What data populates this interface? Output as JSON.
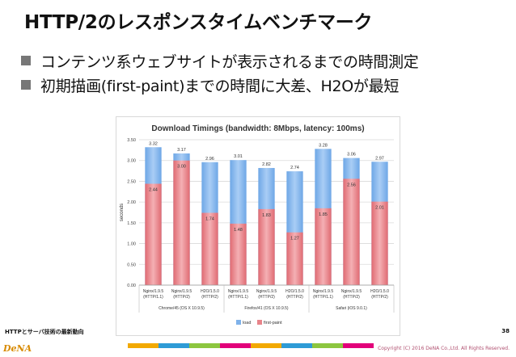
{
  "slide": {
    "title": "HTTP/2のレスポンスタイムベンチマーク",
    "bullets": [
      "コンテンツ系ウェブサイトが表示されるまでの時間測定",
      "初期描画(first-paint)までの時間に大差、H2Oが最短"
    ],
    "footer_note": "HTTPとサーバ技術の最新動向",
    "page_number": "38",
    "logo_text": "DeNA",
    "copyright": "Copyright (C) 2016 DeNA Co.,Ltd. All Rights Reserved.",
    "strip_colors": [
      "#f2a900",
      "#2e9bd6",
      "#8cc63f",
      "#e2007a",
      "#f2a900",
      "#2e9bd6",
      "#8cc63f",
      "#e2007a"
    ]
  },
  "chart_data": {
    "type": "bar",
    "title": "Download Timings (bandwidth: 8Mbps, latency: 100ms)",
    "ylabel": "seconds",
    "ylim": [
      0,
      3.5
    ],
    "yticks": [
      "0.00",
      "0.50",
      "1.00",
      "1.50",
      "2.00",
      "2.50",
      "3.00",
      "3.50"
    ],
    "ytick_values": [
      0,
      0.5,
      1,
      1.5,
      2,
      2.5,
      3,
      3.5
    ],
    "grid": true,
    "legend_position": "bottom",
    "categories": [
      [
        "Nginx/1.9.5",
        "(HTTP/1.1)"
      ],
      [
        "Nginx/1.9.5",
        "(HTTP/2)"
      ],
      [
        "H2O/1.5.0",
        "(HTTP/2)"
      ],
      [
        "Nginx/1.9.5",
        "(HTTP/1.1)"
      ],
      [
        "Nginx/1.9.5",
        "(HTTP/2)"
      ],
      [
        "H2O/1.5.0",
        "(HTTP/2)"
      ],
      [
        "Nginx/1.9.5",
        "(HTTP/1.1)"
      ],
      [
        "Nginx/1.9.5",
        "(HTTP/2)"
      ],
      [
        "H2O/1.5.0",
        "(HTTP/2)"
      ]
    ],
    "groups": [
      {
        "label": "Chrome/45 (OS X 10.9.5)",
        "count": 3
      },
      {
        "label": "Firefox/41 (OS X 10.9.5)",
        "count": 3
      },
      {
        "label": "Safari (iOS 9.0.1)",
        "count": 3
      }
    ],
    "series": [
      {
        "name": "load",
        "values": [
          3.32,
          3.17,
          2.96,
          3.01,
          2.82,
          2.74,
          3.28,
          3.06,
          2.97
        ],
        "labels": [
          "3.32",
          "3.17",
          "2.96",
          "3.01",
          "2.82",
          "2.74",
          "3.28",
          "3.06",
          "2.97"
        ],
        "color": "#7fb2ea"
      },
      {
        "name": "first-paint",
        "values": [
          2.44,
          3.0,
          1.74,
          1.48,
          1.83,
          1.27,
          1.85,
          2.56,
          2.01
        ],
        "labels": [
          "2.44",
          "3.00",
          "1.74",
          "1.48",
          "1.83",
          "1.27",
          "1.85",
          "2.56",
          "2.01"
        ],
        "color": "#e8848a"
      }
    ]
  }
}
